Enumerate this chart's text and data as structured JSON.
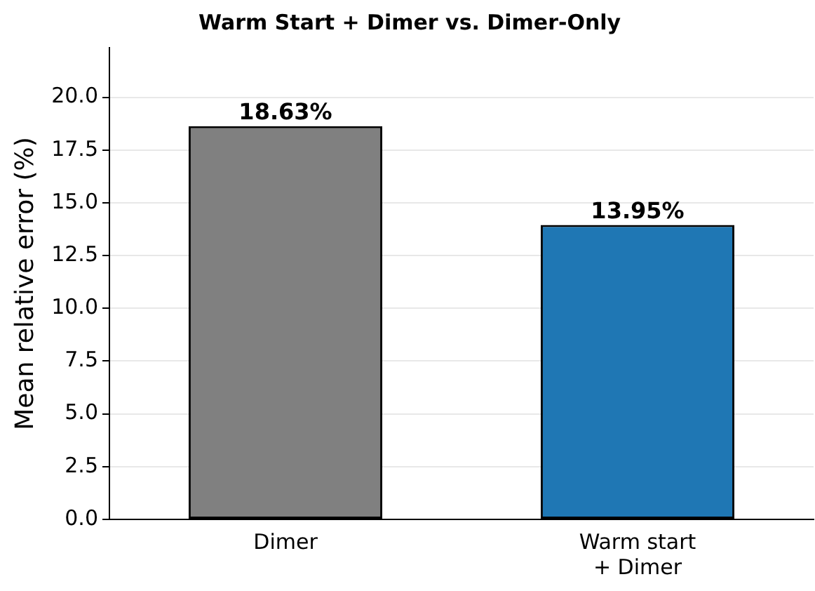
{
  "chart_data": {
    "type": "bar",
    "title": "Warm Start + Dimer vs. Dimer-Only",
    "ylabel": "Mean relative error (%)",
    "categories": [
      "Dimer",
      "Warm start\n+ Dimer"
    ],
    "values": [
      18.63,
      13.95
    ],
    "colors": [
      "#808080",
      "#1f77b4"
    ],
    "value_labels": [
      "18.63%",
      "13.95%"
    ],
    "ylim": [
      0,
      22.35
    ],
    "yticks": [
      {
        "value": 0,
        "label": "0.0"
      },
      {
        "value": 2.5,
        "label": "2.5"
      },
      {
        "value": 5,
        "label": "5.0"
      },
      {
        "value": 7.5,
        "label": "7.5"
      },
      {
        "value": 10,
        "label": "10.0"
      },
      {
        "value": 12.5,
        "label": "12.5"
      },
      {
        "value": 15,
        "label": "15.0"
      },
      {
        "value": 17.5,
        "label": "17.5"
      },
      {
        "value": 20,
        "label": "20.0"
      }
    ],
    "grid": "y",
    "legend": false
  }
}
